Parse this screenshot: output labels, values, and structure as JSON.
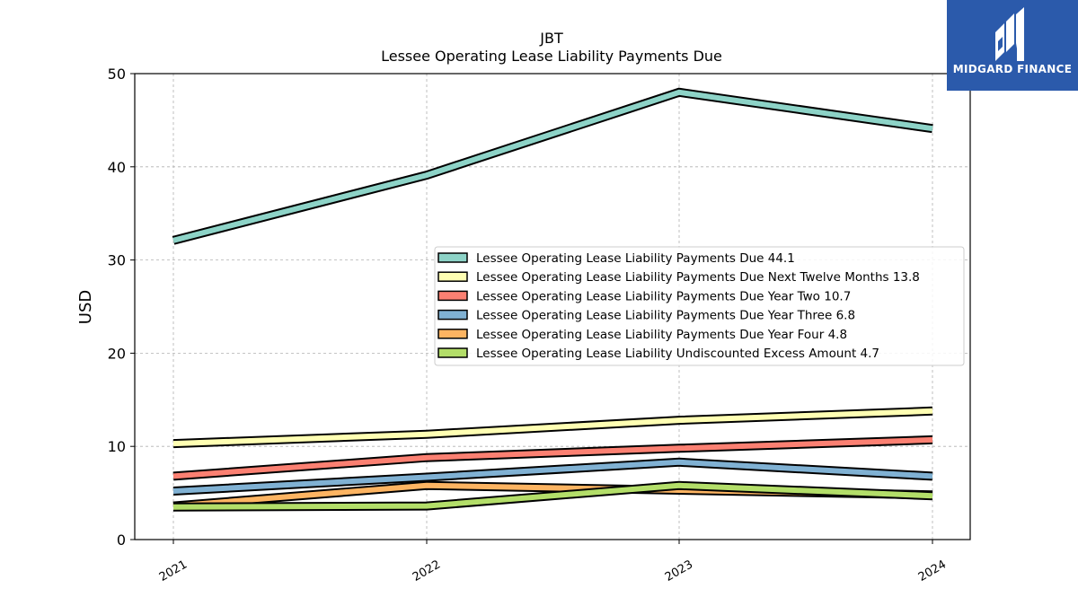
{
  "brand": {
    "name": "MIDGARD FINANCE",
    "logo_icon": "midgard-logo-icon",
    "color": "#2b5aab"
  },
  "chart_data": {
    "type": "line",
    "title": "JBT",
    "subtitle": "Lessee Operating Lease Liability Payments Due",
    "xlabel": "",
    "ylabel": "USD",
    "x": [
      "2021",
      "2022",
      "2023",
      "2024"
    ],
    "ylim": [
      0,
      50
    ],
    "yticks": [
      "0",
      "10",
      "20",
      "30",
      "40",
      "50"
    ],
    "grid": true,
    "legend_position": "center-right",
    "series": [
      {
        "name": "Lessee Operating Lease Liability Payments Due  44.1",
        "color": "#8dd3c7",
        "values": [
          32.1,
          39.1,
          48.0,
          44.1
        ]
      },
      {
        "name": "Lessee Operating Lease Liability Payments Due Next Twelve Months  13.8",
        "color": "#ffffb3",
        "values": [
          10.3,
          11.3,
          12.8,
          13.8
        ]
      },
      {
        "name": "Lessee Operating Lease Liability Payments Due Year Two  10.7",
        "color": "#fb8072",
        "values": [
          6.8,
          8.8,
          9.8,
          10.7
        ]
      },
      {
        "name": "Lessee Operating Lease Liability Payments Due Year Three  6.8",
        "color": "#80b1d3",
        "values": [
          5.2,
          6.7,
          8.3,
          6.8
        ]
      },
      {
        "name": "Lessee Operating Lease Liability Payments Due Year Four  4.8",
        "color": "#fdb462",
        "values": [
          3.6,
          5.8,
          5.3,
          4.8
        ]
      },
      {
        "name": "Lessee Operating Lease Liability Undiscounted Excess Amount  4.7",
        "color": "#b3de69",
        "values": [
          3.5,
          3.6,
          5.8,
          4.7
        ]
      }
    ]
  }
}
